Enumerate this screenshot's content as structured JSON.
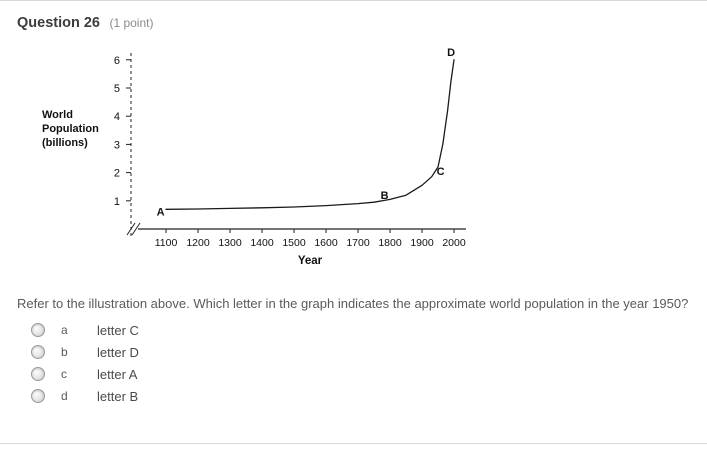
{
  "header": {
    "title": "Question 26",
    "points": "(1 point)"
  },
  "question_text": "Refer to the illustration above. Which letter in the graph indicates the approximate world population in the year 1950?",
  "options": [
    {
      "key": "a",
      "label": "letter C"
    },
    {
      "key": "b",
      "label": "letter D"
    },
    {
      "key": "c",
      "label": "letter A"
    },
    {
      "key": "d",
      "label": "letter B"
    }
  ],
  "chart_data": {
    "type": "line",
    "title": "",
    "ylabel_lines": [
      "World",
      "Population",
      "(billions)"
    ],
    "xlabel": "Year",
    "x_ticks": [
      1100,
      1200,
      1300,
      1400,
      1500,
      1600,
      1700,
      1800,
      1900,
      2000
    ],
    "y_ticks": [
      1,
      2,
      3,
      4,
      5,
      6
    ],
    "xlim": [
      1100,
      2000
    ],
    "ylim": [
      0,
      6
    ],
    "axis_break": true,
    "line_color": "#1a1a1a",
    "points": [
      {
        "x": 1100,
        "y": 0.7
      },
      {
        "x": 1200,
        "y": 0.71
      },
      {
        "x": 1300,
        "y": 0.73
      },
      {
        "x": 1400,
        "y": 0.75
      },
      {
        "x": 1500,
        "y": 0.78
      },
      {
        "x": 1600,
        "y": 0.83
      },
      {
        "x": 1700,
        "y": 0.9
      },
      {
        "x": 1750,
        "y": 0.95
      },
      {
        "x": 1800,
        "y": 1.05
      },
      {
        "x": 1850,
        "y": 1.2
      },
      {
        "x": 1900,
        "y": 1.55
      },
      {
        "x": 1930,
        "y": 1.85
      },
      {
        "x": 1950,
        "y": 2.2
      },
      {
        "x": 1965,
        "y": 3.0
      },
      {
        "x": 1980,
        "y": 4.2
      },
      {
        "x": 1990,
        "y": 5.2
      },
      {
        "x": 2000,
        "y": 6.0
      }
    ],
    "annotations": [
      {
        "label": "A",
        "x": 1083,
        "y": 0.62
      },
      {
        "label": "B",
        "x": 1783,
        "y": 1.2
      },
      {
        "label": "C",
        "x": 1958,
        "y": 2.05
      },
      {
        "label": "D",
        "x": 1991,
        "y": 6.28
      }
    ]
  }
}
